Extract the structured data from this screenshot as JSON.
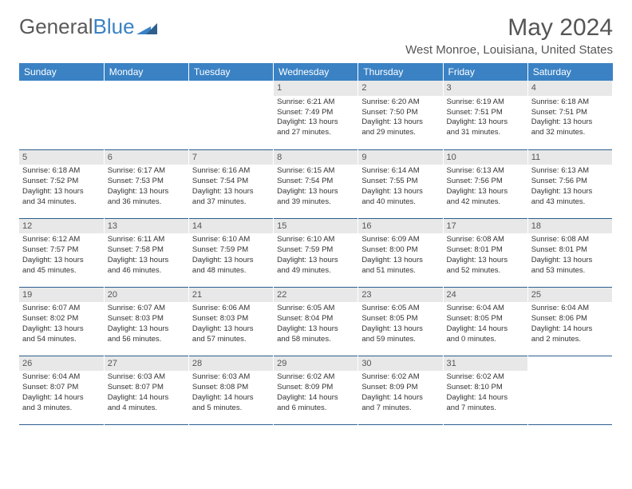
{
  "logo": {
    "part1": "General",
    "part2": "Blue"
  },
  "title": "May 2024",
  "location": "West Monroe, Louisiana, United States",
  "headers": [
    "Sunday",
    "Monday",
    "Tuesday",
    "Wednesday",
    "Thursday",
    "Friday",
    "Saturday"
  ],
  "colors": {
    "header_bg": "#3a82c4",
    "header_text": "#ffffff",
    "daynum_bg": "#e8e8e8",
    "rule": "#2e5f8f",
    "text": "#333333",
    "title_text": "#555555"
  },
  "weeks": [
    [
      null,
      null,
      null,
      {
        "d": "1",
        "rise": "6:21 AM",
        "set": "7:49 PM",
        "dl1": "13 hours",
        "dl2": "and 27 minutes."
      },
      {
        "d": "2",
        "rise": "6:20 AM",
        "set": "7:50 PM",
        "dl1": "13 hours",
        "dl2": "and 29 minutes."
      },
      {
        "d": "3",
        "rise": "6:19 AM",
        "set": "7:51 PM",
        "dl1": "13 hours",
        "dl2": "and 31 minutes."
      },
      {
        "d": "4",
        "rise": "6:18 AM",
        "set": "7:51 PM",
        "dl1": "13 hours",
        "dl2": "and 32 minutes."
      }
    ],
    [
      {
        "d": "5",
        "rise": "6:18 AM",
        "set": "7:52 PM",
        "dl1": "13 hours",
        "dl2": "and 34 minutes."
      },
      {
        "d": "6",
        "rise": "6:17 AM",
        "set": "7:53 PM",
        "dl1": "13 hours",
        "dl2": "and 36 minutes."
      },
      {
        "d": "7",
        "rise": "6:16 AM",
        "set": "7:54 PM",
        "dl1": "13 hours",
        "dl2": "and 37 minutes."
      },
      {
        "d": "8",
        "rise": "6:15 AM",
        "set": "7:54 PM",
        "dl1": "13 hours",
        "dl2": "and 39 minutes."
      },
      {
        "d": "9",
        "rise": "6:14 AM",
        "set": "7:55 PM",
        "dl1": "13 hours",
        "dl2": "and 40 minutes."
      },
      {
        "d": "10",
        "rise": "6:13 AM",
        "set": "7:56 PM",
        "dl1": "13 hours",
        "dl2": "and 42 minutes."
      },
      {
        "d": "11",
        "rise": "6:13 AM",
        "set": "7:56 PM",
        "dl1": "13 hours",
        "dl2": "and 43 minutes."
      }
    ],
    [
      {
        "d": "12",
        "rise": "6:12 AM",
        "set": "7:57 PM",
        "dl1": "13 hours",
        "dl2": "and 45 minutes."
      },
      {
        "d": "13",
        "rise": "6:11 AM",
        "set": "7:58 PM",
        "dl1": "13 hours",
        "dl2": "and 46 minutes."
      },
      {
        "d": "14",
        "rise": "6:10 AM",
        "set": "7:59 PM",
        "dl1": "13 hours",
        "dl2": "and 48 minutes."
      },
      {
        "d": "15",
        "rise": "6:10 AM",
        "set": "7:59 PM",
        "dl1": "13 hours",
        "dl2": "and 49 minutes."
      },
      {
        "d": "16",
        "rise": "6:09 AM",
        "set": "8:00 PM",
        "dl1": "13 hours",
        "dl2": "and 51 minutes."
      },
      {
        "d": "17",
        "rise": "6:08 AM",
        "set": "8:01 PM",
        "dl1": "13 hours",
        "dl2": "and 52 minutes."
      },
      {
        "d": "18",
        "rise": "6:08 AM",
        "set": "8:01 PM",
        "dl1": "13 hours",
        "dl2": "and 53 minutes."
      }
    ],
    [
      {
        "d": "19",
        "rise": "6:07 AM",
        "set": "8:02 PM",
        "dl1": "13 hours",
        "dl2": "and 54 minutes."
      },
      {
        "d": "20",
        "rise": "6:07 AM",
        "set": "8:03 PM",
        "dl1": "13 hours",
        "dl2": "and 56 minutes."
      },
      {
        "d": "21",
        "rise": "6:06 AM",
        "set": "8:03 PM",
        "dl1": "13 hours",
        "dl2": "and 57 minutes."
      },
      {
        "d": "22",
        "rise": "6:05 AM",
        "set": "8:04 PM",
        "dl1": "13 hours",
        "dl2": "and 58 minutes."
      },
      {
        "d": "23",
        "rise": "6:05 AM",
        "set": "8:05 PM",
        "dl1": "13 hours",
        "dl2": "and 59 minutes."
      },
      {
        "d": "24",
        "rise": "6:04 AM",
        "set": "8:05 PM",
        "dl1": "14 hours",
        "dl2": "and 0 minutes."
      },
      {
        "d": "25",
        "rise": "6:04 AM",
        "set": "8:06 PM",
        "dl1": "14 hours",
        "dl2": "and 2 minutes."
      }
    ],
    [
      {
        "d": "26",
        "rise": "6:04 AM",
        "set": "8:07 PM",
        "dl1": "14 hours",
        "dl2": "and 3 minutes."
      },
      {
        "d": "27",
        "rise": "6:03 AM",
        "set": "8:07 PM",
        "dl1": "14 hours",
        "dl2": "and 4 minutes."
      },
      {
        "d": "28",
        "rise": "6:03 AM",
        "set": "8:08 PM",
        "dl1": "14 hours",
        "dl2": "and 5 minutes."
      },
      {
        "d": "29",
        "rise": "6:02 AM",
        "set": "8:09 PM",
        "dl1": "14 hours",
        "dl2": "and 6 minutes."
      },
      {
        "d": "30",
        "rise": "6:02 AM",
        "set": "8:09 PM",
        "dl1": "14 hours",
        "dl2": "and 7 minutes."
      },
      {
        "d": "31",
        "rise": "6:02 AM",
        "set": "8:10 PM",
        "dl1": "14 hours",
        "dl2": "and 7 minutes."
      },
      null
    ]
  ]
}
